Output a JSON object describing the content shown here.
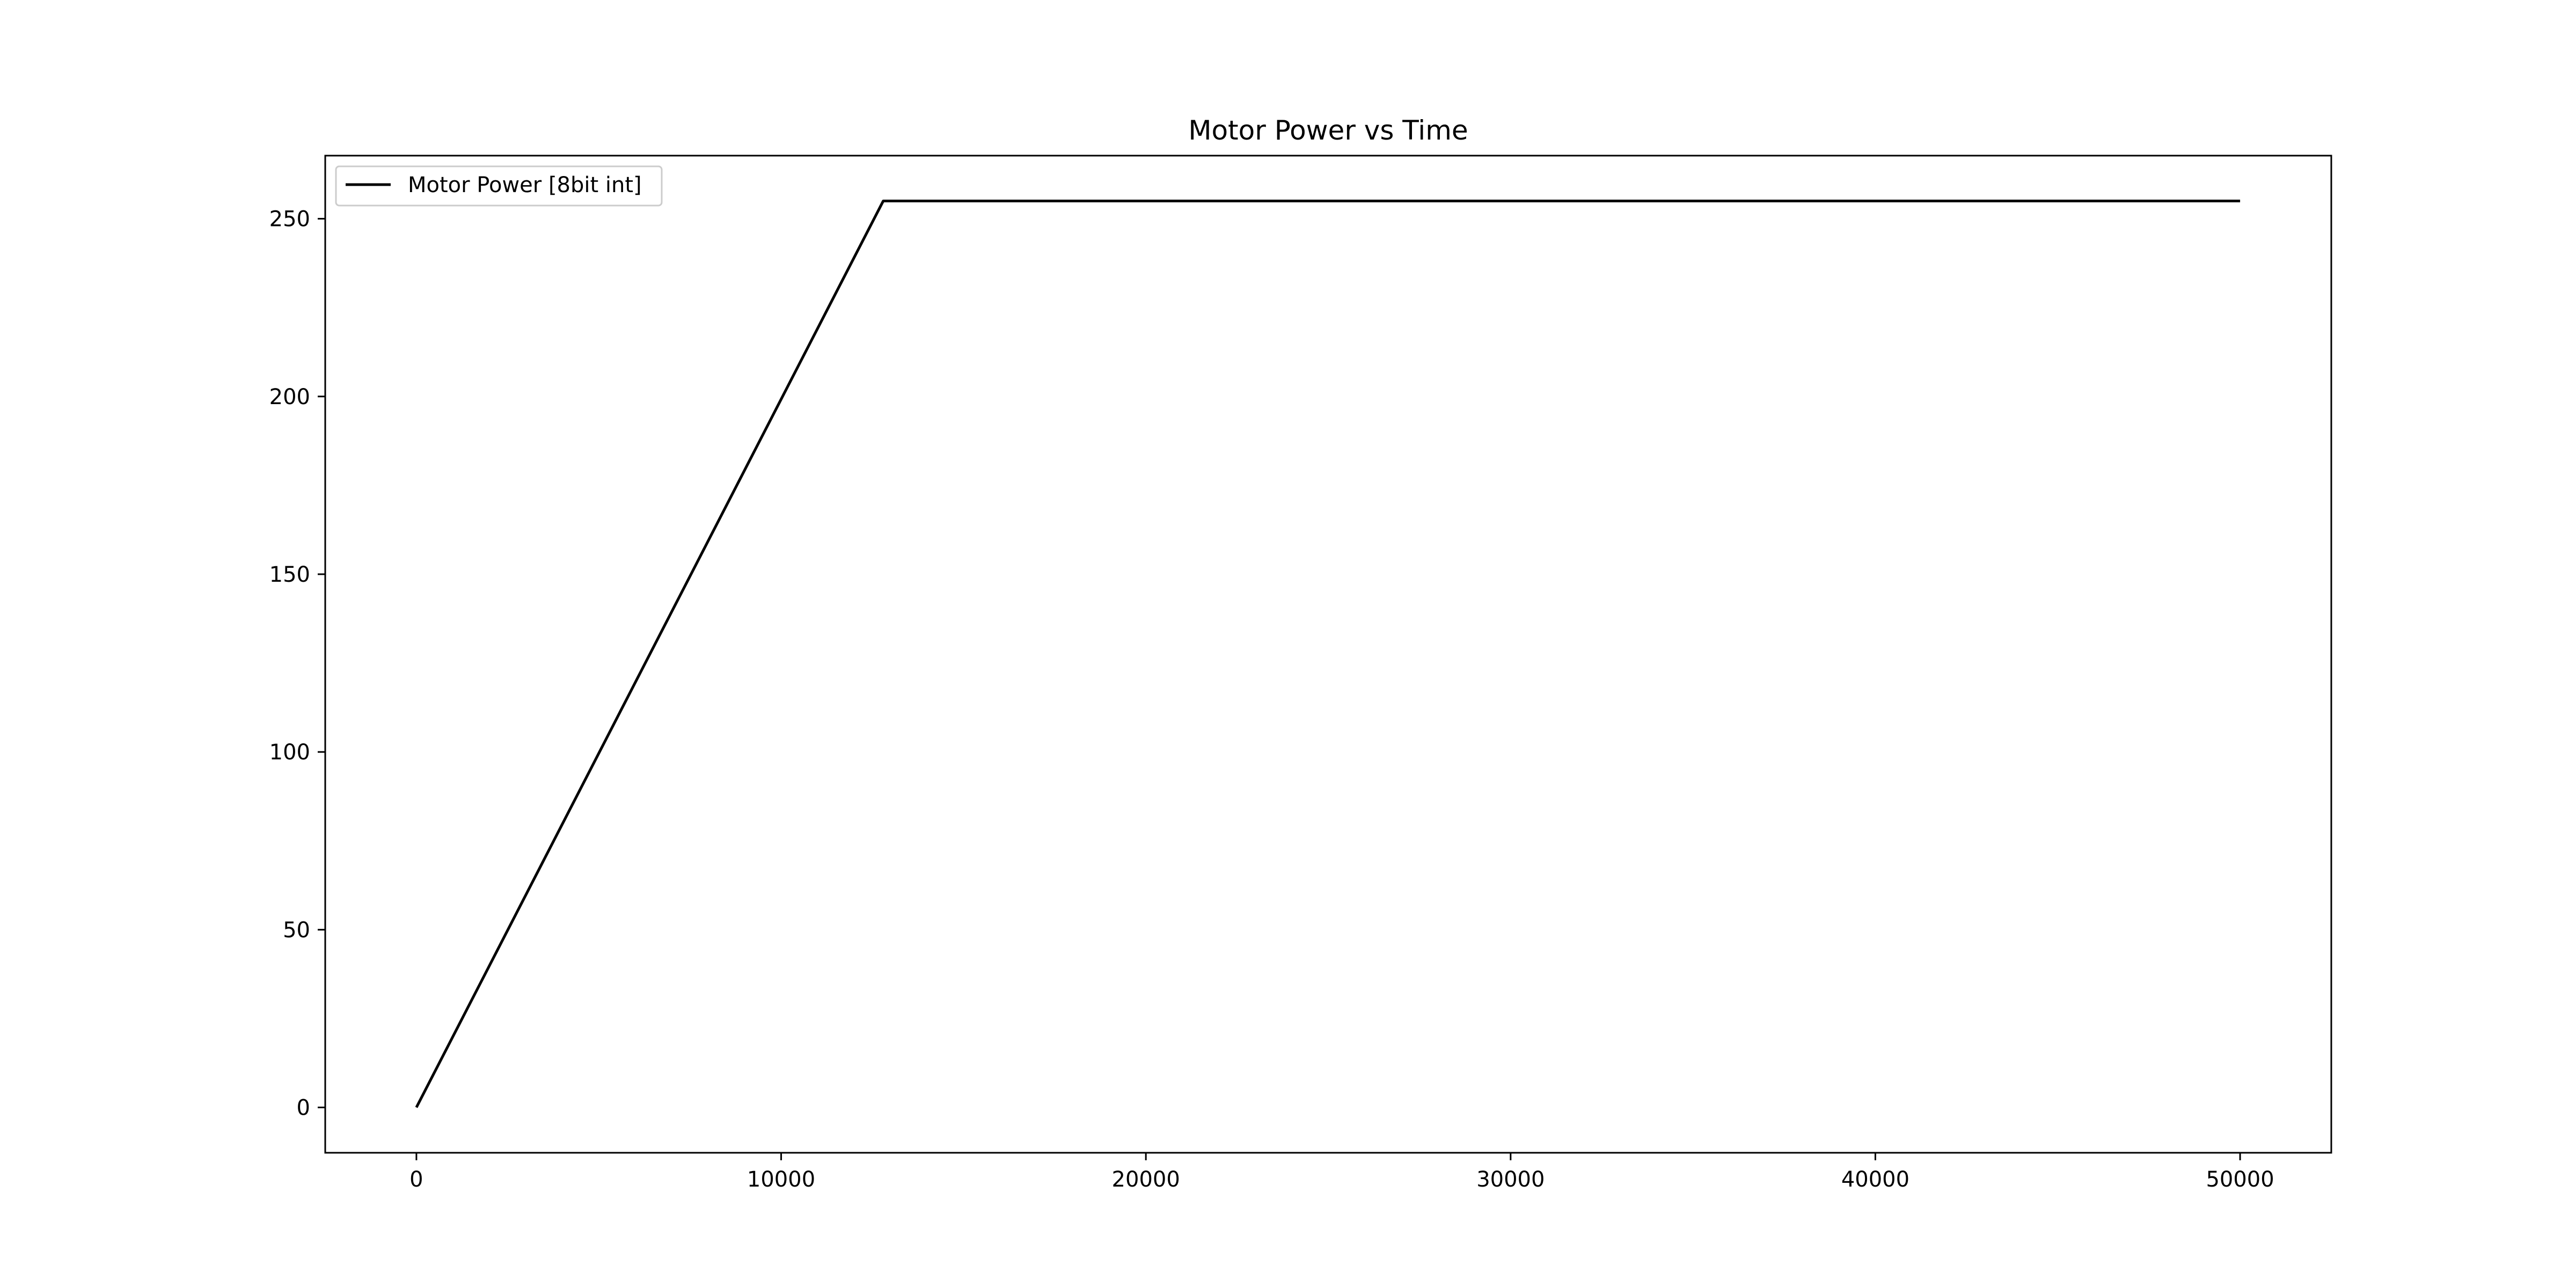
{
  "chart_data": {
    "type": "line",
    "title": "Motor Power vs Time",
    "xlabel": "",
    "ylabel": "",
    "xlim": [
      -2500,
      52500
    ],
    "ylim": [
      -12.75,
      267.75
    ],
    "xticks": [
      0,
      10000,
      20000,
      30000,
      40000,
      50000
    ],
    "xtick_labels": [
      "0",
      "10000",
      "20000",
      "30000",
      "40000",
      "50000"
    ],
    "yticks": [
      0,
      50,
      100,
      150,
      200,
      250
    ],
    "ytick_labels": [
      "0",
      "50",
      "100",
      "150",
      "200",
      "250"
    ],
    "grid": false,
    "legend_position": "upper left",
    "series": [
      {
        "name": "Motor Power [8bit int]",
        "color": "#000000",
        "x": [
          0,
          12800,
          50000
        ],
        "y": [
          0,
          255,
          255
        ]
      }
    ]
  }
}
